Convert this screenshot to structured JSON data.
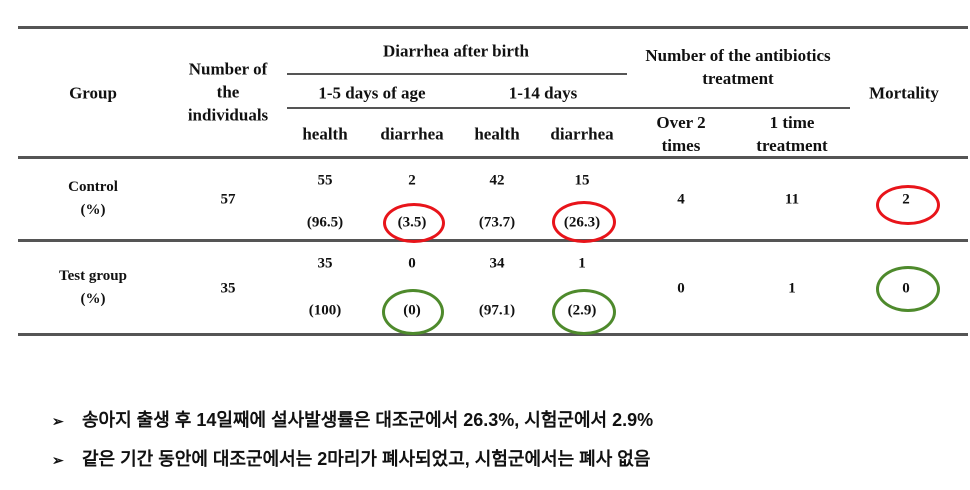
{
  "table": {
    "headers": {
      "group": "Group",
      "number": [
        "Number of",
        "the",
        "individuals"
      ],
      "diarrhea_after_birth": "Diarrhea after birth",
      "period_1": "1-5 days of age",
      "period_2": "1-14 days",
      "health": "health",
      "diarrhea": "diarrhea",
      "antibiotics": [
        "Number of the antibiotics",
        "treatment"
      ],
      "over2": [
        "Over 2",
        "times"
      ],
      "one_time": [
        "1 time",
        "treatment"
      ],
      "mortality": "Mortality"
    },
    "rows": [
      {
        "group": [
          "Control",
          "(%)"
        ],
        "number": "57",
        "h1": "55",
        "h1_pct": "(96.5)",
        "d1": "2",
        "d1_pct": "(3.5)",
        "h2": "42",
        "h2_pct": "(73.7)",
        "d2": "15",
        "d2_pct": "(26.3)",
        "over2": "4",
        "once": "11",
        "mortality": "2",
        "highlight_color": "#e8141a"
      },
      {
        "group": [
          "Test group",
          "(%)"
        ],
        "number": "35",
        "h1": "35",
        "h1_pct": "(100)",
        "d1": "0",
        "d1_pct": "(0)",
        "h2": "34",
        "h2_pct": "(97.1)",
        "d2": "1",
        "d2_pct": "(2.9)",
        "over2": "0",
        "once": "1",
        "mortality": "0",
        "highlight_color": "#4e8a2c"
      }
    ]
  },
  "bullets": [
    {
      "icon": "arrow-bullet-icon",
      "text": "송아지 출생 후 14일째에 설사발생률은 대조군에서 26.3%, 시험군에서 2.9%"
    },
    {
      "icon": "arrow-bullet-icon",
      "text": "같은 기간 동안에 대조군에서는 2마리가 폐사되었고, 시험군에서는 폐사 없음"
    }
  ]
}
